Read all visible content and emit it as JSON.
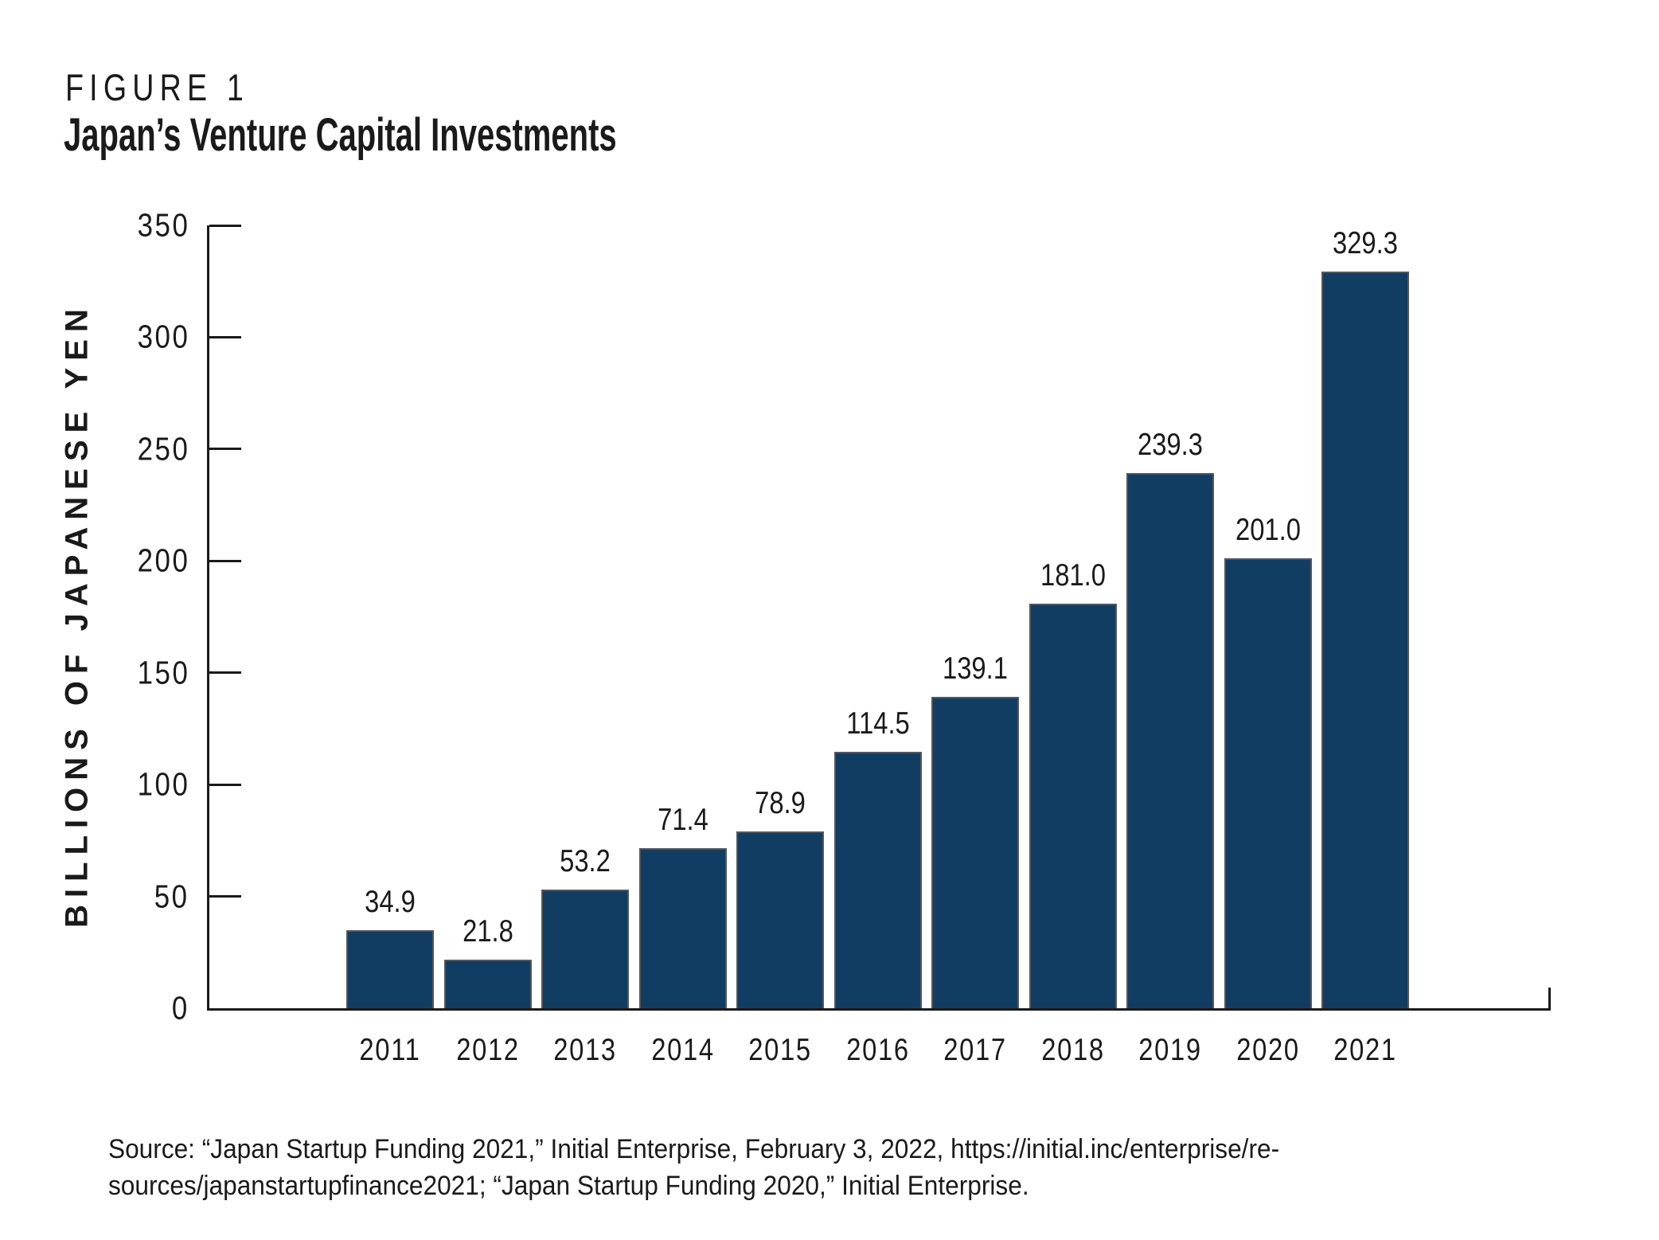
{
  "header": {
    "figure_label": "FIGURE 1",
    "title": "Japan’s Venture Capital Investments"
  },
  "chart_data": {
    "type": "bar",
    "title": "Japan’s Venture Capital Investments",
    "categories": [
      "2011",
      "2012",
      "2013",
      "2014",
      "2015",
      "2016",
      "2017",
      "2018",
      "2019",
      "2020",
      "2021"
    ],
    "values": [
      34.9,
      21.8,
      53.2,
      71.4,
      78.9,
      114.5,
      139.1,
      181.0,
      239.3,
      201.0,
      329.3
    ],
    "value_labels": [
      "34.9",
      "21.8",
      "53.2",
      "71.4",
      "78.9",
      "114.5",
      "139.1",
      "181.0",
      "239.3",
      "201.0",
      "329.3"
    ],
    "xlabel": "",
    "ylabel": "BILLIONS OF JAPANESE YEN",
    "ylim": [
      0,
      350
    ],
    "yticks": [
      0,
      50,
      100,
      150,
      200,
      250,
      300,
      350
    ],
    "grid": false,
    "legend": "none",
    "bar_color": "#123d63",
    "bar_edge_color": "#55565a",
    "axis_color": "#1a1a1a"
  },
  "source": {
    "lines": [
      "Source: “Japan Startup Funding 2021,” Initial Enterprise, February 3, 2022, https://initial.inc/enterprise/re-",
      "sources/japanstartupfinance2021; “Japan Startup Funding 2020,” Initial Enterprise."
    ]
  },
  "colors": {
    "background": "#ffffff",
    "text": "#1a1a1a",
    "bar": "#123d63",
    "bar_top_edge": "#55565a",
    "axis": "#1a1a1a"
  }
}
